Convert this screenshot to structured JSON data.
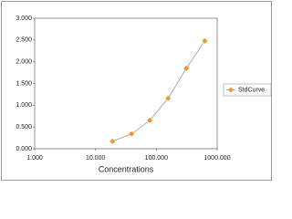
{
  "chart_data": {
    "type": "line",
    "x_label": "Concentrations",
    "x": [
      19,
      39,
      78,
      156,
      312,
      625
    ],
    "series": [
      {
        "name": "StdCurve",
        "color": "#f0962e",
        "line_color": "#9a9a9a",
        "values": [
          0.17,
          0.34,
          0.65,
          1.16,
          1.85,
          2.48
        ]
      }
    ],
    "xscale": "log",
    "xlim": [
      1,
      1000
    ],
    "xticks": [
      {
        "value": 1,
        "label": "1.000"
      },
      {
        "value": 10,
        "label": "10.000"
      },
      {
        "value": 100,
        "label": "100.000"
      },
      {
        "value": 1000,
        "label": "1000.000"
      }
    ],
    "ylim": [
      0,
      3
    ],
    "yticks": [
      {
        "value": 0,
        "label": "0.000"
      },
      {
        "value": 0.5,
        "label": "0.500"
      },
      {
        "value": 1,
        "label": "1.000"
      },
      {
        "value": 1.5,
        "label": "1.500"
      },
      {
        "value": 2,
        "label": "2.000"
      },
      {
        "value": 2.5,
        "label": "2.500"
      },
      {
        "value": 3,
        "label": "3.000"
      }
    ],
    "grid": false,
    "legend": "right"
  }
}
